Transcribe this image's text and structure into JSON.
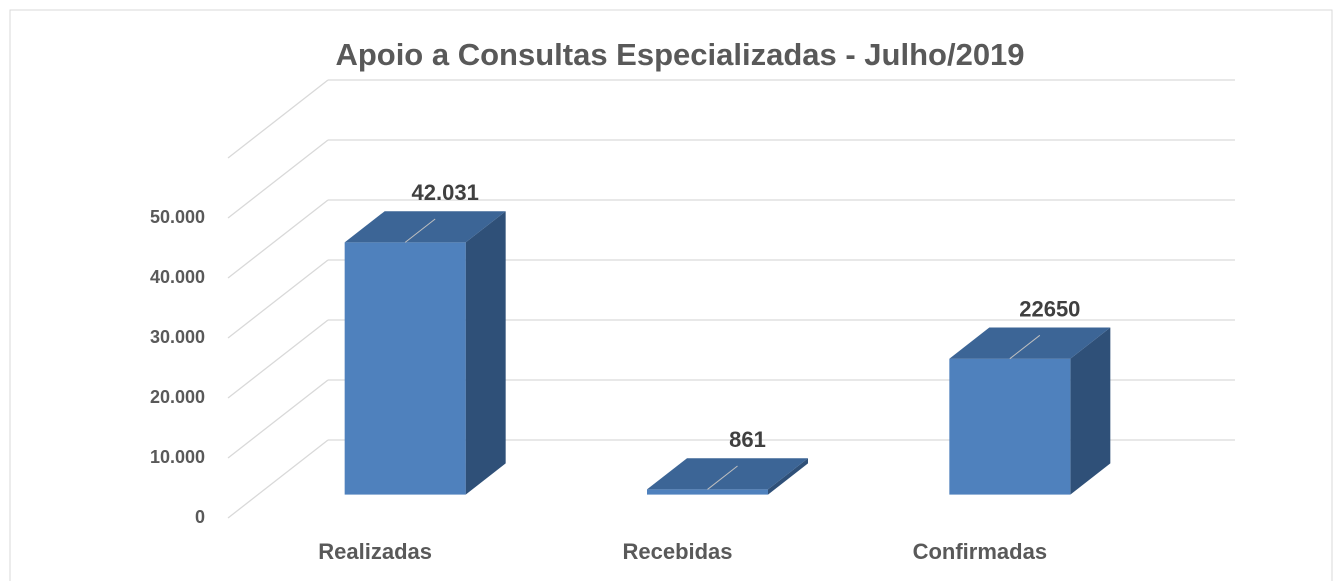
{
  "chart_data": {
    "type": "bar3d",
    "title": "Apoio a Consultas Especializadas - Julho/2019",
    "categories": [
      "Realizadas",
      "Recebidas",
      "Confirmadas"
    ],
    "values": [
      42031,
      861,
      22650
    ],
    "value_labels": [
      "42.031",
      "861",
      "22650"
    ],
    "color": "#4f81bd",
    "ylim": [
      0,
      60000
    ],
    "yticks": [
      0,
      {
        "value": 10000,
        "label": "10.000"
      },
      {
        "value": 20000,
        "label": "20.000"
      },
      {
        "value": 30000,
        "label": "30.000"
      },
      {
        "value": 40000,
        "label": "40.000"
      },
      {
        "value": 50000,
        "label": "50.000"
      }
    ],
    "grid": true
  }
}
